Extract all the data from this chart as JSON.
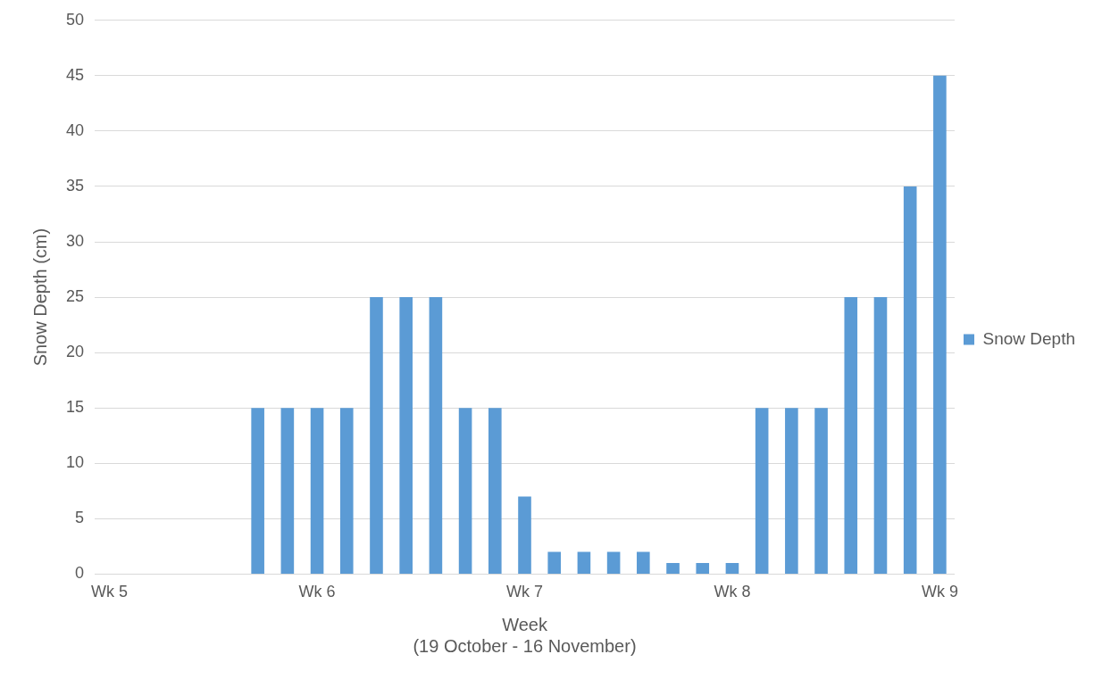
{
  "chart_data": {
    "type": "bar",
    "xlabel": "Week\n(19 October - 16 November)",
    "ylabel": "Snow Depth (cm)",
    "categories": [
      "Wk 5",
      null,
      null,
      null,
      null,
      null,
      null,
      "Wk 6",
      null,
      null,
      null,
      null,
      null,
      null,
      "Wk 7",
      null,
      null,
      null,
      null,
      null,
      null,
      "Wk 8",
      null,
      null,
      null,
      null,
      null,
      null,
      "Wk 9"
    ],
    "series": [
      {
        "name": "Snow Depth",
        "color": "#5b9bd5",
        "values": [
          0,
          0,
          0,
          0,
          0,
          15,
          15,
          15,
          15,
          25,
          25,
          25,
          15,
          15,
          7,
          2,
          2,
          2,
          2,
          1,
          1,
          1,
          15,
          15,
          15,
          25,
          25,
          35,
          45
        ]
      }
    ],
    "ylim": [
      0,
      50
    ],
    "yticks": [
      0,
      5,
      10,
      15,
      20,
      25,
      30,
      35,
      40,
      45,
      50
    ],
    "grid": "y",
    "legend": "right"
  }
}
